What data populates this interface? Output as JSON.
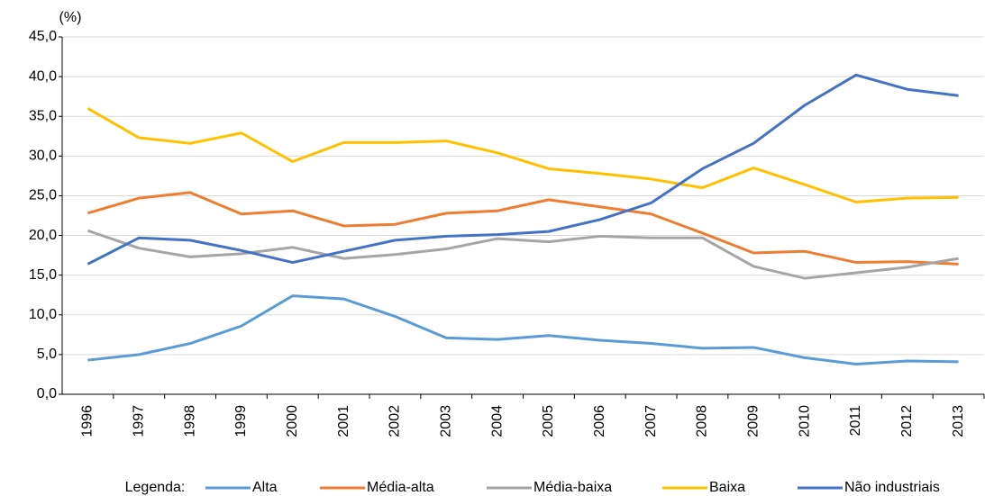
{
  "chart_data": {
    "type": "line",
    "y_unit": "(%)",
    "legend_title": "Legenda:",
    "legend_position": "bottom",
    "grid": true,
    "categories": [
      "1996",
      "1997",
      "1998",
      "1999",
      "2000",
      "2001",
      "2002",
      "2003",
      "2004",
      "2005",
      "2006",
      "2007",
      "2008",
      "2009",
      "2010",
      "2011",
      "2012",
      "2013"
    ],
    "ylim": [
      0,
      45
    ],
    "yticks": [
      {
        "value": 0,
        "label": "0,0"
      },
      {
        "value": 5,
        "label": "5,0"
      },
      {
        "value": 10,
        "label": "10,0"
      },
      {
        "value": 15,
        "label": "15,0"
      },
      {
        "value": 20,
        "label": "20,0"
      },
      {
        "value": 25,
        "label": "25,0"
      },
      {
        "value": 30,
        "label": "30,0"
      },
      {
        "value": 35,
        "label": "35,0"
      },
      {
        "value": 40,
        "label": "40,0"
      },
      {
        "value": 45,
        "label": "45,0"
      }
    ],
    "series": [
      {
        "name": "Alta",
        "color": "#5b9bd5",
        "values": [
          4.3,
          5.0,
          6.4,
          8.6,
          12.4,
          12.0,
          9.8,
          7.1,
          6.9,
          7.4,
          6.8,
          6.4,
          5.8,
          5.9,
          4.6,
          3.8,
          4.2,
          4.1
        ]
      },
      {
        "name": "Média-alta",
        "color": "#ed7d31",
        "values": [
          22.8,
          24.7,
          25.4,
          22.7,
          23.1,
          21.2,
          21.4,
          22.8,
          23.1,
          24.5,
          23.6,
          22.7,
          20.3,
          17.8,
          18.0,
          16.6,
          16.7,
          16.4
        ]
      },
      {
        "name": "Média-baixa",
        "color": "#a5a5a5",
        "values": [
          20.6,
          18.4,
          17.3,
          17.7,
          18.5,
          17.1,
          17.6,
          18.3,
          19.6,
          19.2,
          19.9,
          19.7,
          19.7,
          16.1,
          14.6,
          15.3,
          16.0,
          17.1
        ]
      },
      {
        "name": "Baixa",
        "color": "#ffc000",
        "values": [
          36.0,
          32.3,
          31.6,
          32.9,
          29.3,
          31.7,
          31.7,
          31.9,
          30.4,
          28.4,
          27.8,
          27.1,
          26.0,
          28.5,
          26.4,
          24.2,
          24.7,
          24.8
        ]
      },
      {
        "name": "Não industriais",
        "color": "#4472c4",
        "values": [
          16.4,
          19.7,
          19.4,
          18.1,
          16.6,
          18.0,
          19.4,
          19.9,
          20.1,
          20.5,
          22.0,
          24.1,
          28.4,
          31.6,
          36.4,
          40.2,
          38.4,
          37.6
        ]
      }
    ]
  }
}
